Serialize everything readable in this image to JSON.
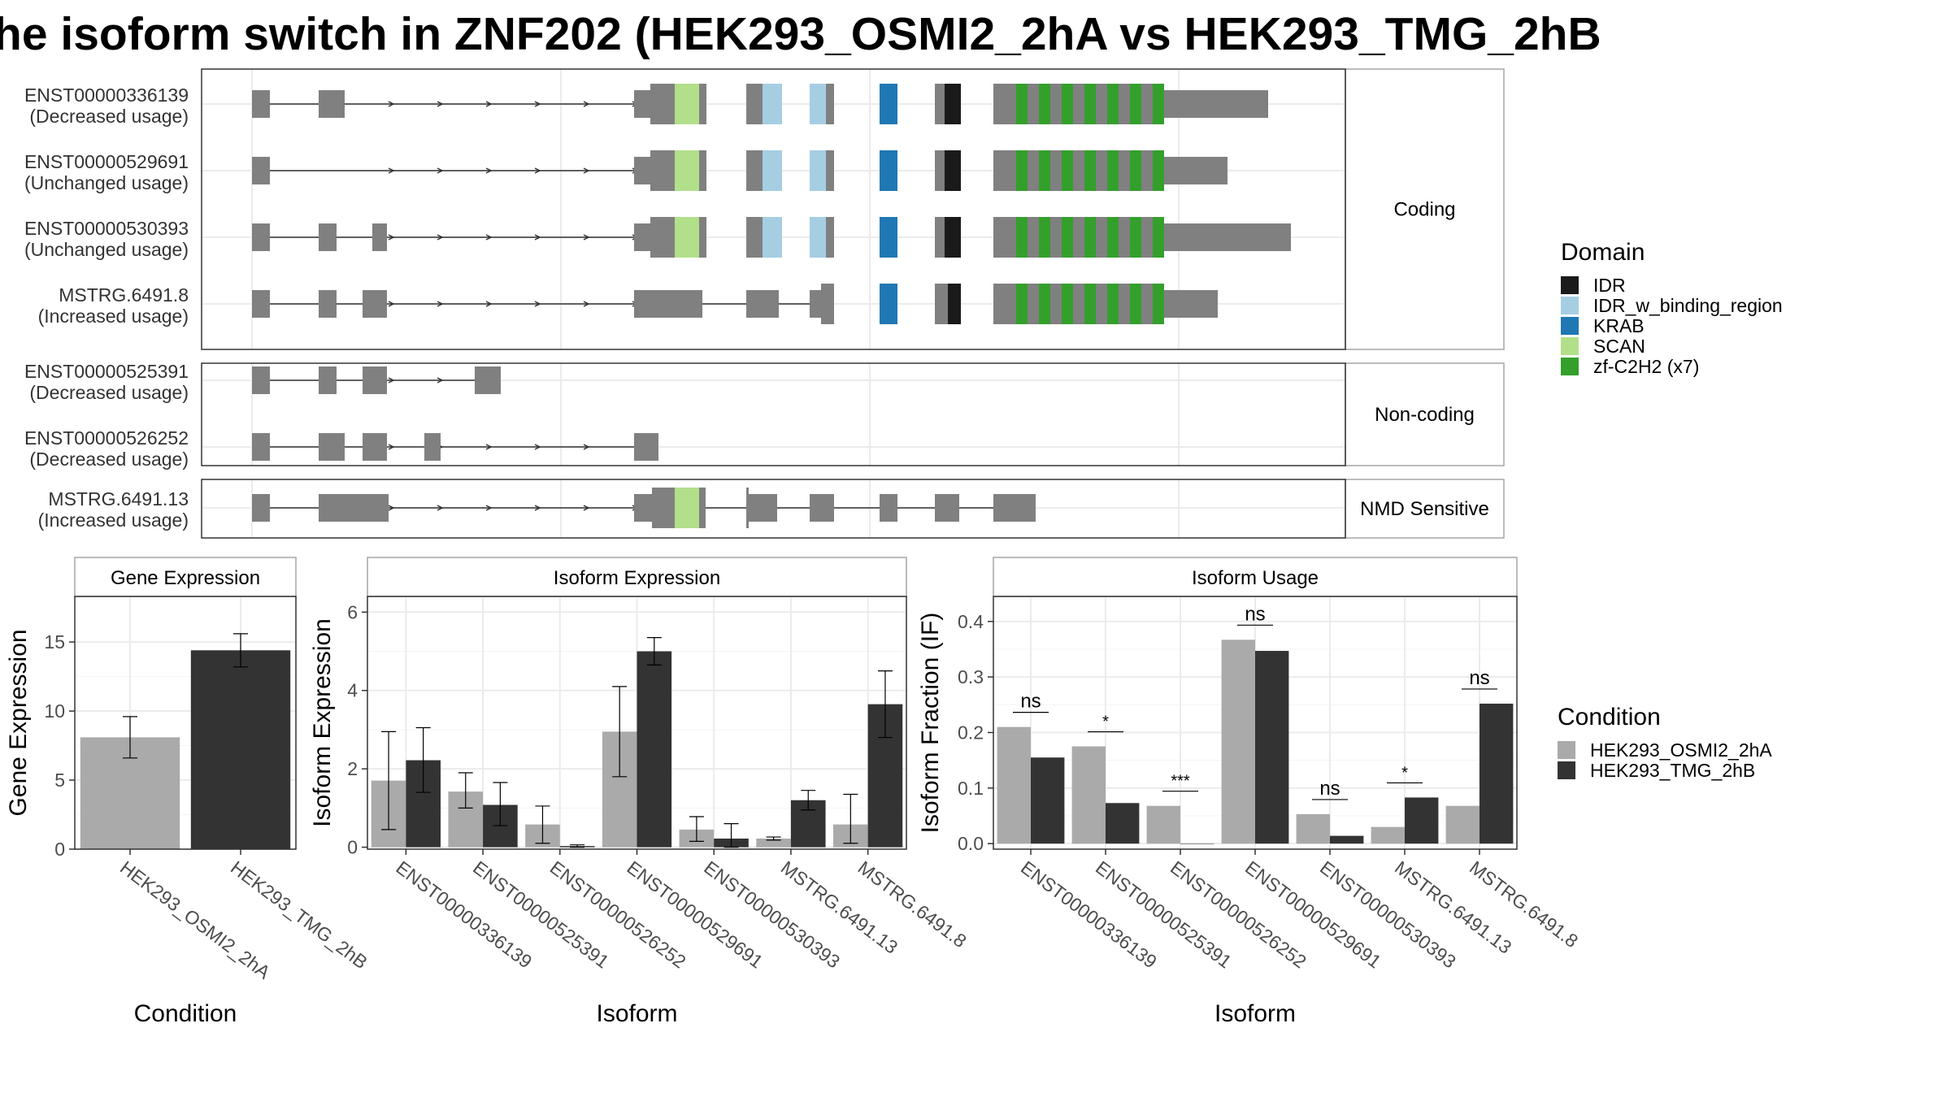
{
  "title": "he isoform switch in ZNF202 (HEK293_OSMI2_2hA vs HEK293_TMG_2hB",
  "colors": {
    "exon": "#808080",
    "intron": "#333333",
    "panel_border": "#333333",
    "strip_border": "#a6a6a6",
    "grid": "#ebebeb",
    "IDR": "#1a1a1a",
    "IDR_w_binding_region": "#a6cee3",
    "KRAB": "#1f78b4",
    "SCAN": "#b2df8a",
    "zf-C2H2": "#33a02c",
    "condition_a": "#aaaaaa",
    "condition_b": "#333333"
  },
  "structure": {
    "groups": [
      {
        "label": "Coding",
        "transcripts": [
          {
            "id": "ENST00000336139",
            "usage": "(Decreased usage)"
          },
          {
            "id": "ENST00000529691",
            "usage": "(Unchanged usage)"
          },
          {
            "id": "ENST00000530393",
            "usage": "(Unchanged usage)"
          },
          {
            "id": "MSTRG.6491.8",
            "usage": "(Increased usage)"
          }
        ]
      },
      {
        "label": "Non-coding",
        "transcripts": [
          {
            "id": "ENST00000525391",
            "usage": "(Decreased usage)"
          },
          {
            "id": "ENST00000526252",
            "usage": "(Decreased usage)"
          }
        ]
      },
      {
        "label": "NMD Sensitive",
        "transcripts": [
          {
            "id": "MSTRG.6491.13",
            "usage": "(Increased usage)"
          }
        ]
      }
    ]
  },
  "legend_domain": {
    "title": "Domain",
    "items": [
      {
        "label": "IDR",
        "color": "#1a1a1a"
      },
      {
        "label": "IDR_w_binding_region",
        "color": "#a6cee3"
      },
      {
        "label": "KRAB",
        "color": "#1f78b4"
      },
      {
        "label": "SCAN",
        "color": "#b2df8a"
      },
      {
        "label": "zf-C2H2 (x7)",
        "color": "#33a02c"
      }
    ]
  },
  "legend_condition": {
    "title": "Condition",
    "items": [
      {
        "label": "HEK293_OSMI2_2hA",
        "color": "#aaaaaa"
      },
      {
        "label": "HEK293_TMG_2hB",
        "color": "#333333"
      }
    ]
  },
  "chart_data": [
    {
      "type": "bar",
      "title": "Gene Expression",
      "xlabel": "Condition",
      "ylabel": "Gene Expression",
      "ylim": [
        0,
        18.3
      ],
      "yticks": [
        0,
        5,
        10,
        15
      ],
      "categories": [
        "HEK293_OSMI2_2hA",
        "HEK293_TMG_2hB"
      ],
      "values": [
        8.1,
        14.4
      ],
      "error_low": [
        6.6,
        13.2
      ],
      "error_high": [
        9.6,
        15.6
      ]
    },
    {
      "type": "bar",
      "title": "Isoform Expression",
      "xlabel": "Isoform",
      "ylabel": "Isoform Expression",
      "ylim": [
        -0.05,
        6.4
      ],
      "yticks": [
        0,
        2,
        4,
        6
      ],
      "categories": [
        "ENST00000336139",
        "ENST00000525391",
        "ENST00000526252",
        "ENST00000529691",
        "ENST00000530393",
        "MSTRG.6491.13",
        "MSTRG.6491.8"
      ],
      "series": [
        {
          "name": "HEK293_OSMI2_2hA",
          "values": [
            1.7,
            1.42,
            0.58,
            2.95,
            0.45,
            0.22,
            0.58
          ],
          "error_low": [
            0.45,
            1.0,
            0.1,
            1.8,
            0.15,
            0.18,
            0.1
          ],
          "error_high": [
            2.95,
            1.9,
            1.05,
            4.1,
            0.78,
            0.26,
            1.35
          ]
        },
        {
          "name": "HEK293_TMG_2hB",
          "values": [
            2.22,
            1.08,
            0.03,
            5.0,
            0.22,
            1.2,
            3.65
          ],
          "error_low": [
            1.4,
            0.55,
            0.0,
            4.65,
            0.0,
            0.95,
            2.8
          ],
          "error_high": [
            3.05,
            1.65,
            0.06,
            5.35,
            0.6,
            1.45,
            4.5
          ]
        }
      ]
    },
    {
      "type": "bar",
      "title": "Isoform Usage",
      "xlabel": "Isoform",
      "ylabel": "Isoform Fraction (IF)",
      "ylim": [
        -0.01,
        0.445
      ],
      "yticks": [
        0.0,
        0.1,
        0.2,
        0.3,
        0.4
      ],
      "ytick_labels": [
        "0.0",
        "0.1",
        "0.2",
        "0.3",
        "0.4"
      ],
      "categories": [
        "ENST00000336139",
        "ENST00000525391",
        "ENST00000526252",
        "ENST00000529691",
        "ENST00000530393",
        "MSTRG.6491.13",
        "MSTRG.6491.8"
      ],
      "series": [
        {
          "name": "HEK293_OSMI2_2hA",
          "values": [
            0.21,
            0.175,
            0.068,
            0.367,
            0.053,
            0.03,
            0.068
          ]
        },
        {
          "name": "HEK293_TMG_2hB",
          "values": [
            0.155,
            0.073,
            0.0,
            0.347,
            0.014,
            0.083,
            0.252
          ]
        }
      ],
      "significance": [
        "ns",
        "*",
        "***",
        "ns",
        "ns",
        "*",
        "ns"
      ]
    }
  ]
}
